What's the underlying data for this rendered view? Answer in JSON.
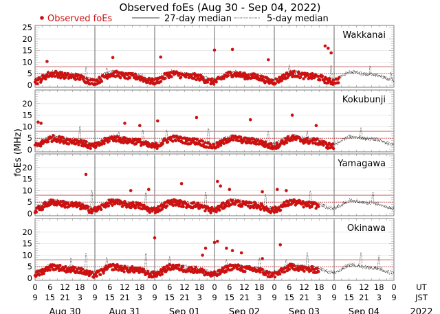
{
  "chart_data": {
    "type": "scatter",
    "title": "Observed foEs (Aug 30 - Sep 04, 2022)",
    "ylabel": "foEs (MHz)",
    "xlabel": "",
    "ylim": [
      0,
      25
    ],
    "yticks_top_panel": [
      0,
      5,
      10,
      15,
      20,
      25
    ],
    "yticks_other_panels": [
      0,
      5,
      10,
      15,
      20
    ],
    "grid": true,
    "legend": {
      "placement": "top",
      "entries": [
        {
          "label": "Observed foEs",
          "style": "red-dot"
        },
        {
          "label": "27-day median",
          "style": "solid-black"
        },
        {
          "label": "5-day median",
          "style": "dotted-black"
        }
      ]
    },
    "x_ticks_ut": [
      "0",
      "6",
      "12",
      "18"
    ],
    "x_ticks_jst": [
      "9",
      "15",
      "21",
      "3"
    ],
    "x_axis_end_labels": {
      "ut": "UT",
      "jst": "JST",
      "year": "2022"
    },
    "days": [
      "Aug 30",
      "Aug 31",
      "Sep 01",
      "Sep 02",
      "Sep 03",
      "Sep 04"
    ],
    "reference_lines_mhz": {
      "solid_red": 8,
      "dotted_red": 5
    },
    "colors": {
      "observed": "#cc1111",
      "median27": "#000000",
      "median5": "#000000",
      "ref_solid": "#d08888",
      "ref_dotted": "#c03030"
    },
    "panels": [
      {
        "station": "Wakkanai",
        "baseline": 4,
        "observed_days": 5.1,
        "outliers": [
          [
            0.2,
            10.3
          ],
          [
            1.3,
            12
          ],
          [
            2.1,
            12.2
          ],
          [
            3.0,
            15.2
          ],
          [
            3.3,
            15.5
          ],
          [
            3.9,
            11
          ],
          [
            4.9,
            16
          ],
          [
            4.95,
            14
          ],
          [
            4.85,
            17
          ]
        ],
        "spikes_27day": [
          [
            0.85,
            8.5
          ],
          [
            1.2,
            8
          ],
          [
            4.25,
            9
          ],
          [
            4.95,
            9
          ],
          [
            5.6,
            9
          ],
          [
            5.95,
            6
          ]
        ]
      },
      {
        "station": "Kokubunji",
        "baseline": 4,
        "observed_days": 5.0,
        "outliers": [
          [
            0.05,
            12
          ],
          [
            0.1,
            11.5
          ],
          [
            1.5,
            11.5
          ],
          [
            1.75,
            10.5
          ],
          [
            2.05,
            12.5
          ],
          [
            2.7,
            14
          ],
          [
            3.6,
            13
          ],
          [
            4.3,
            15
          ],
          [
            4.7,
            10.5
          ]
        ],
        "spikes_27day": [
          [
            0.75,
            10.5
          ],
          [
            1.4,
            8.5
          ],
          [
            1.8,
            9
          ],
          [
            2.2,
            9
          ],
          [
            2.9,
            10
          ],
          [
            3.9,
            8.5
          ],
          [
            4.55,
            8.5
          ],
          [
            5.45,
            10
          ]
        ]
      },
      {
        "station": "Yamagawa",
        "baseline": 4,
        "observed_days": 4.75,
        "outliers": [
          [
            0.85,
            17
          ],
          [
            1.6,
            10
          ],
          [
            1.9,
            10.5
          ],
          [
            2.45,
            13
          ],
          [
            3.05,
            14
          ],
          [
            3.1,
            12
          ],
          [
            3.25,
            10.5
          ],
          [
            3.8,
            9.5
          ],
          [
            4.05,
            10.5
          ],
          [
            4.2,
            10
          ]
        ],
        "spikes_27day": [
          [
            0.95,
            10.5
          ],
          [
            1.85,
            10
          ],
          [
            2.85,
            10
          ],
          [
            3.85,
            9
          ],
          [
            4.6,
            10.5
          ],
          [
            5.65,
            10
          ]
        ]
      },
      {
        "station": "Okinawa",
        "baseline": 4,
        "observed_days": 4.75,
        "outliers": [
          [
            2.0,
            17.5
          ],
          [
            2.85,
            13
          ],
          [
            2.8,
            10
          ],
          [
            3.0,
            15.5
          ],
          [
            3.05,
            16
          ],
          [
            3.2,
            13
          ],
          [
            3.3,
            12
          ],
          [
            3.45,
            11
          ],
          [
            3.8,
            8.5
          ],
          [
            4.1,
            14.5
          ]
        ],
        "spikes_27day": [
          [
            0.6,
            9.5
          ],
          [
            0.85,
            11.5
          ],
          [
            1.2,
            9.5
          ],
          [
            1.85,
            11.5
          ],
          [
            2.25,
            9.5
          ],
          [
            3.2,
            8.5
          ],
          [
            3.75,
            9
          ],
          [
            4.2,
            8.5
          ],
          [
            4.55,
            11.5
          ],
          [
            5.45,
            11.5
          ],
          [
            5.75,
            10
          ]
        ]
      }
    ]
  }
}
